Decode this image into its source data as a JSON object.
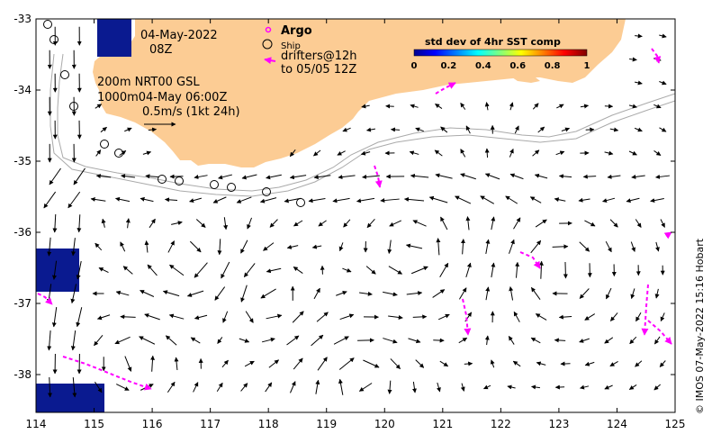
{
  "header": {
    "date": "04-May-2022",
    "time": "08Z",
    "depth_contours": "200m  NRT00 GSL",
    "contour_1000_and_time": "1000m04-May 06:00Z",
    "scale_text": "0.5m/s (1kt 24h)"
  },
  "legend": {
    "argo": "Argo",
    "ship": "Ship",
    "drifters_line1": "drifters@12h",
    "drifters_line2": "to 05/05 12Z"
  },
  "colorbar": {
    "title": "std dev of 4hr SST comp",
    "ticks": [
      "0",
      "0.2",
      "0.4",
      "0.6",
      "0.8",
      "1"
    ]
  },
  "axes": {
    "x_ticks": [
      "114",
      "115",
      "116",
      "117",
      "118",
      "119",
      "120",
      "121",
      "122",
      "123",
      "124",
      "125"
    ],
    "y_ticks": [
      "-33",
      "-34",
      "-35",
      "-36",
      "-37",
      "-38"
    ]
  },
  "credit": "© IMOS 07-May-2022 15:16 Hobart",
  "colors": {
    "land": "#fccc94",
    "drifter": "#ff00ff",
    "contour": "#aaaaaa",
    "high_sst_std": "#0a1a90"
  }
}
